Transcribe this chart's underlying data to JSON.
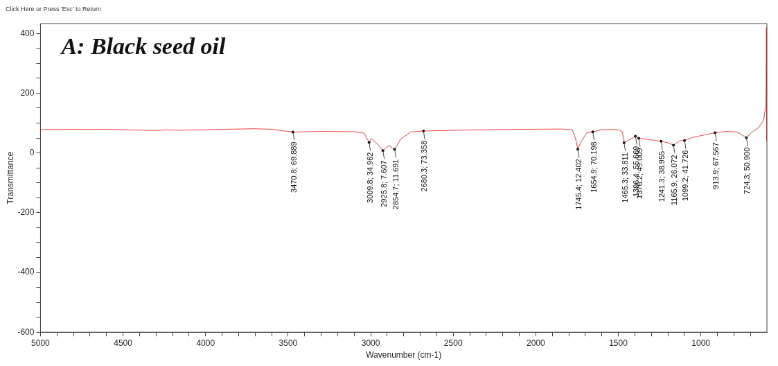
{
  "chart_data": {
    "type": "line",
    "title": "A: Black seed oil",
    "xlabel": "Wavenumber (cm-1)",
    "ylabel": "Transmittance",
    "annotations": [
      "Click Here or Press 'Esc' to Return",
      {
        "text": "3470.8; 69.889",
        "x": 3470.8,
        "y": 69.889
      },
      {
        "text": "3009.8; 34.962",
        "x": 3009.8,
        "y": 34.962
      },
      {
        "text": "2925.8; 7.607",
        "x": 2925.8,
        "y": 7.607
      },
      {
        "text": "2854.7; 11.691",
        "x": 2854.7,
        "y": 11.691
      },
      {
        "text": "2680.3; 73.358",
        "x": 2680.3,
        "y": 73.358
      },
      {
        "text": "1745.4; 12.402",
        "x": 1745.4,
        "y": 12.402
      },
      {
        "text": "1654.9; 70.198",
        "x": 1654.9,
        "y": 70.198
      },
      {
        "text": "1465.3; 33.811",
        "x": 1465.3,
        "y": 33.811
      },
      {
        "text": "1396.4; 55.669",
        "x": 1396.4,
        "y": 55.669
      },
      {
        "text": "1376.2; 49.009",
        "x": 1376.2,
        "y": 49.009
      },
      {
        "text": "1241.3; 38.955",
        "x": 1241.3,
        "y": 38.955
      },
      {
        "text": "1165.9; 26.072",
        "x": 1165.9,
        "y": 26.072
      },
      {
        "text": "1099.2; 41.726",
        "x": 1099.2,
        "y": 41.726
      },
      {
        "text": "913.9; 67.567",
        "x": 913.9,
        "y": 67.567
      },
      {
        "text": "724.3; 50.900",
        "x": 724.3,
        "y": 50.9
      }
    ],
    "series": [
      {
        "color": "#f04040",
        "x": [
          5000,
          4800,
          4600,
          4300,
          4250,
          4150,
          3900,
          3700,
          3600,
          3470.8,
          3300,
          3100,
          3040,
          3009.8,
          2995,
          2960,
          2925.8,
          2890,
          2875,
          2854.7,
          2820,
          2760,
          2680.3,
          2400,
          2100,
          1850,
          1780,
          1760,
          1745.4,
          1725,
          1690,
          1654.9,
          1600,
          1500,
          1475,
          1465.3,
          1430,
          1396.4,
          1376.2,
          1320,
          1241.3,
          1200,
          1165.9,
          1130,
          1099.2,
          1050,
          980,
          913.9,
          850,
          780,
          724.3,
          690,
          650,
          620,
          606,
          603,
          601
        ],
        "values": [
          78,
          79,
          79,
          75,
          77,
          76,
          79,
          81,
          79,
          69.889,
          72,
          71,
          66,
          34.962,
          48,
          30,
          7.607,
          25,
          19,
          11.691,
          45,
          70,
          73.358,
          77,
          79,
          80,
          78,
          50,
          12.402,
          38,
          68,
          70.198,
          78,
          78,
          70,
          33.811,
          45,
          55.669,
          49.009,
          45,
          38.955,
          34,
          26.072,
          40,
          41.726,
          52,
          60,
          67.567,
          72,
          70,
          50.9,
          70,
          85,
          110,
          160,
          420,
          40
        ]
      }
    ],
    "xlim": [
      5000,
      600
    ],
    "xticks": [
      5000,
      {
        "value": 4900,
        "label": null
      },
      {
        "value": 4800,
        "label": null
      },
      {
        "value": 4700,
        "label": null
      },
      {
        "value": 4600,
        "label": null
      },
      4500,
      {
        "value": 4400,
        "label": null
      },
      {
        "value": 4300,
        "label": null
      },
      {
        "value": 4200,
        "label": null
      },
      {
        "value": 4100,
        "label": null
      },
      4000,
      {
        "value": 3900,
        "label": null
      },
      {
        "value": 3800,
        "label": null
      },
      {
        "value": 3700,
        "label": null
      },
      {
        "value": 3600,
        "label": null
      },
      3500,
      {
        "value": 3400,
        "label": null
      },
      {
        "value": 3300,
        "label": null
      },
      {
        "value": 3200,
        "label": null
      },
      {
        "value": 3100,
        "label": null
      },
      3000,
      {
        "value": 2900,
        "label": null
      },
      {
        "value": 2800,
        "label": null
      },
      {
        "value": 2700,
        "label": null
      },
      {
        "value": 2600,
        "label": null
      },
      2500,
      {
        "value": 2400,
        "label": null
      },
      {
        "value": 2300,
        "label": null
      },
      {
        "value": 2200,
        "label": null
      },
      {
        "value": 2100,
        "label": null
      },
      2000,
      {
        "value": 1900,
        "label": null
      },
      {
        "value": 1800,
        "label": null
      },
      {
        "value": 1700,
        "label": null
      },
      {
        "value": 1600,
        "label": null
      },
      1500,
      {
        "value": 1400,
        "label": null
      },
      {
        "value": 1300,
        "label": null
      },
      {
        "value": 1200,
        "label": null
      },
      {
        "value": 1100,
        "label": null
      },
      1000,
      {
        "value": 900,
        "label": null
      },
      {
        "value": 800,
        "label": null
      },
      {
        "value": 700,
        "label": null
      }
    ],
    "ylim": [
      -600,
      433
    ],
    "yticks": [
      -600,
      {
        "value": -550,
        "label": null
      },
      {
        "value": -500,
        "label": null
      },
      {
        "value": -450,
        "label": null
      },
      -400,
      {
        "value": -350,
        "label": null
      },
      {
        "value": -300,
        "label": null
      },
      {
        "value": -250,
        "label": null
      },
      -200,
      {
        "value": -150,
        "label": null
      },
      {
        "value": -100,
        "label": null
      },
      {
        "value": -50,
        "label": null
      },
      0,
      {
        "value": 50,
        "label": null
      },
      {
        "value": 100,
        "label": null
      },
      {
        "value": 150,
        "label": null
      },
      200,
      {
        "value": 250,
        "label": null
      },
      {
        "value": 300,
        "label": null
      },
      {
        "value": 350,
        "label": null
      },
      400
    ],
    "grid": false,
    "legend": false,
    "marker": "none",
    "line_style": "solid"
  }
}
